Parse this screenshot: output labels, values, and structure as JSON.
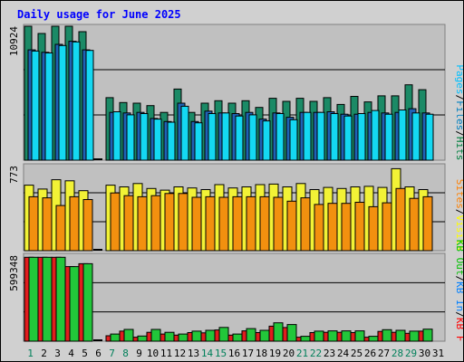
{
  "chart_data": {
    "type": "bar",
    "title": "Daily usage for June 2025",
    "x": [
      "1",
      "2",
      "3",
      "4",
      "5",
      "6",
      "7",
      "8",
      "9",
      "10",
      "11",
      "12",
      "13",
      "14",
      "15",
      "16",
      "17",
      "18",
      "19",
      "20",
      "21",
      "22",
      "23",
      "24",
      "25",
      "26",
      "27",
      "28",
      "29",
      "30",
      "31"
    ],
    "weekend_days": [
      "1",
      "7",
      "8",
      "14",
      "15",
      "21",
      "22",
      "28",
      "29"
    ],
    "panels": [
      {
        "name": "hits",
        "max_label": "10924",
        "ymax": 10924,
        "legend": [
          {
            "text": "Hits",
            "color": "#008040"
          },
          {
            "text": "/",
            "color": "#000000"
          },
          {
            "text": "Files",
            "color": "#0080c0"
          },
          {
            "text": "/",
            "color": "#000000"
          },
          {
            "text": "Pages",
            "color": "#00c0ff"
          }
        ],
        "series": [
          {
            "name": "Hits",
            "color": "#1b8a66",
            "values": [
              10924,
              10336,
              10924,
              10924,
              10480,
              0,
              5100,
              4700,
              4650,
              4450,
              3900,
              5800,
              3900,
              4650,
              4850,
              4650,
              4850,
              4300,
              5050,
              4800,
              5050,
              4800,
              5100,
              4550,
              5200,
              4750,
              5250,
              5250,
              6150,
              5750,
              0
            ]
          },
          {
            "name": "Files",
            "color": "#1f62b5",
            "values": [
              9000,
              8800,
              9450,
              9700,
              9000,
              0,
              3900,
              3850,
              3900,
              3400,
              3150,
              4650,
              3150,
              4000,
              3850,
              3800,
              3900,
              3350,
              3850,
              3500,
              3900,
              3900,
              3950,
              3750,
              3750,
              3900,
              3850,
              3900,
              4200,
              3850,
              0
            ]
          },
          {
            "name": "Pages",
            "color": "#14d8f2",
            "values": [
              8900,
              8750,
              9350,
              9650,
              8950,
              0,
              3950,
              3700,
              3800,
              3350,
              3100,
              4400,
              3050,
              3800,
              3850,
              3600,
              3700,
              3200,
              3800,
              3300,
              3900,
              3900,
              3800,
              3600,
              3800,
              4050,
              3750,
              4100,
              3850,
              3750,
              0
            ]
          }
        ]
      },
      {
        "name": "visits",
        "max_label": "773",
        "ymax": 773,
        "legend": [
          {
            "text": "Visits",
            "color": "#ffff00"
          },
          {
            "text": "/",
            "color": "#000000"
          },
          {
            "text": "Sites",
            "color": "#ff8000"
          }
        ],
        "series": [
          {
            "name": "Visits",
            "color": "#f2f236",
            "values": [
              595,
              560,
              645,
              635,
              545,
              0,
              595,
              580,
              610,
              565,
              550,
              580,
              570,
              555,
              600,
              570,
              580,
              600,
              605,
              580,
              610,
              555,
              575,
              565,
              580,
              585,
              575,
              745,
              580,
              555,
              0
            ]
          },
          {
            "name": "Sites",
            "color": "#f2900f",
            "values": [
              490,
              480,
              410,
              490,
              465,
              0,
              525,
              500,
              490,
              500,
              520,
              520,
              485,
              490,
              485,
              490,
              490,
              490,
              485,
              450,
              480,
              420,
              430,
              430,
              440,
              400,
              435,
              565,
              475,
              490,
              0
            ]
          }
        ]
      },
      {
        "name": "kbytes",
        "max_label": "599348",
        "ymax": 599348,
        "legend": [
          {
            "text": "KB F",
            "color": "#ff0000"
          },
          {
            "text": "/",
            "color": "#000000"
          },
          {
            "text": "KB In",
            "color": "#0080ff"
          },
          {
            "text": "/",
            "color": "#000000"
          },
          {
            "text": "KB Out",
            "color": "#00c000"
          }
        ],
        "series": [
          {
            "name": "KB F",
            "color": "#e11d1d",
            "values": [
              585000,
              585000,
              585000,
              520000,
              540000,
              0,
              38000,
              70000,
              28000,
              62000,
              50000,
              42000,
              60000,
              58000,
              78000,
              42000,
              72000,
              60000,
              105000,
              95000,
              28000,
              60000,
              62000,
              62000,
              60000,
              28000,
              68000,
              62000,
              55000,
              70000,
              0
            ]
          },
          {
            "name": "KB Out",
            "color": "#22c73a",
            "values": [
              585000,
              585000,
              585000,
              520000,
              540000,
              0,
              50000,
              82000,
              36000,
              82000,
              62000,
              50000,
              70000,
              76000,
              96000,
              50000,
              88000,
              76000,
              128000,
              116000,
              34000,
              70000,
              72000,
              72000,
              72000,
              34000,
              80000,
              76000,
              70000,
              84000,
              0
            ]
          }
        ]
      }
    ],
    "grid": true,
    "ylim": [
      0,
      null
    ]
  }
}
